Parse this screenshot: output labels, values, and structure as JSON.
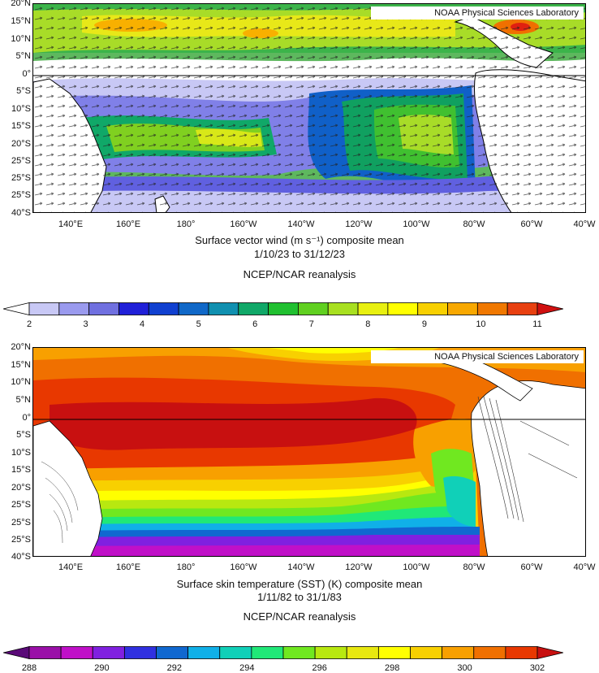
{
  "credit": "NOAA Physical Sciences Laboratory",
  "lat_ticks": [
    "20°N",
    "15°N",
    "10°N",
    "5°N",
    "0°",
    "5°S",
    "10°S",
    "15°S",
    "20°S",
    "25°S",
    "25°S",
    "25°S",
    "40°S"
  ],
  "lon_ticks": [
    "140°E",
    "160°E",
    "180°",
    "160°W",
    "140°W",
    "120°W",
    "100°W",
    "80°W",
    "60°W",
    "40°W"
  ],
  "wind_panel": {
    "caption_line1": "Surface vector wind (m s⁻¹) composite mean",
    "caption_line2": "1/10/23 to 31/12/23",
    "caption_line3": "NCEP/NCAR reanalysis",
    "colorbar_labels": [
      "2",
      "3",
      "4",
      "5",
      "6",
      "7",
      "8",
      "9",
      "10",
      "11"
    ],
    "colorbar_colors": [
      "#ffffff",
      "#c8c8f5",
      "#9a9aee",
      "#7070e0",
      "#2020d8",
      "#1040d0",
      "#1068c8",
      "#1090b0",
      "#10a868",
      "#20c030",
      "#60d020",
      "#a8e020",
      "#e8f010",
      "#ffff00",
      "#f8d000",
      "#f8a800",
      "#f07800",
      "#e84010",
      "#d01010"
    ]
  },
  "sst_panel": {
    "caption_line1": "Surface skin temperature (SST) (K) composite mean",
    "caption_line2": "1/11/82 to 31/1/83",
    "caption_line3": "NCEP/NCAR reanalysis",
    "colorbar_labels": [
      "288",
      "290",
      "292",
      "294",
      "296",
      "298",
      "300",
      "302"
    ],
    "colorbar_colors": [
      "#5a0a78",
      "#9a10a8",
      "#c010c8",
      "#8020e0",
      "#3030e0",
      "#1068d0",
      "#10b0e8",
      "#10d0b8",
      "#20e878",
      "#70e820",
      "#b8e810",
      "#e8e810",
      "#ffff00",
      "#f8d000",
      "#f8a000",
      "#f07000",
      "#e83800",
      "#c81010"
    ]
  }
}
